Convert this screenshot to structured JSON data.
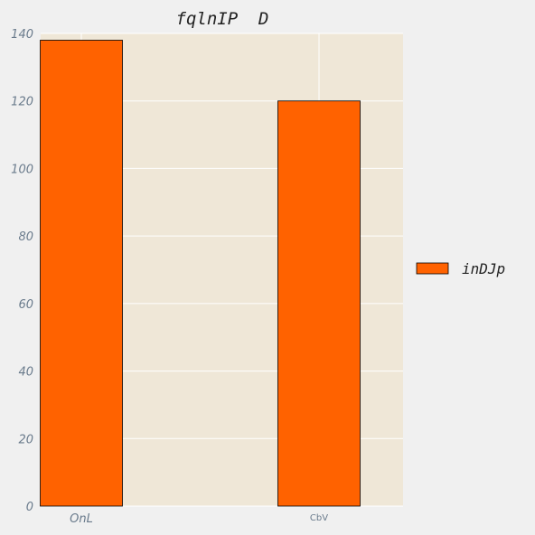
{
  "chart_data": {
    "type": "bar",
    "title": "fqlnIP  D",
    "categories": [
      "OnL",
      "CbV"
    ],
    "series": [
      {
        "name": "inDJp",
        "values": [
          138,
          120
        ],
        "color": "#ff6200"
      }
    ],
    "xlabel": "",
    "ylabel": "",
    "ylim": [
      0,
      140
    ],
    "yticks": [
      "0",
      "20",
      "40",
      "60",
      "80",
      "100",
      "120",
      "140"
    ],
    "grid": true,
    "legend_position": "right",
    "colors": {
      "plot_background": "#efe7d7",
      "page_background": "#f0f0f0",
      "bar_edge": "#000000",
      "grid": "#ffffff",
      "tick_text": "#6a7b8c"
    }
  }
}
